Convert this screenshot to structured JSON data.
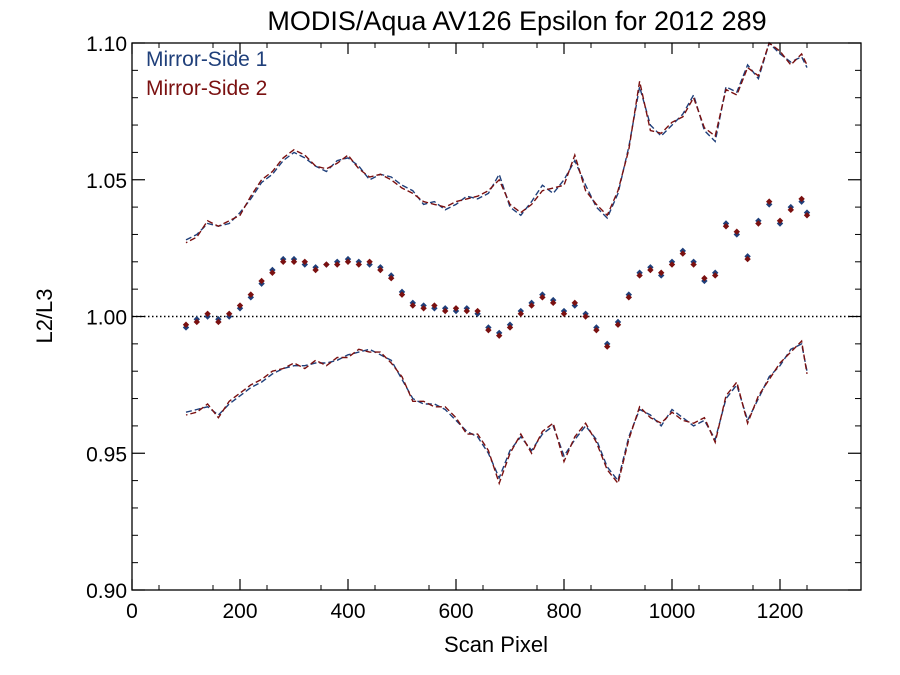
{
  "chart_data": {
    "type": "scatter",
    "title": "MODIS/Aqua AV126 Epsilon for 2012 289",
    "xlabel": "Scan Pixel",
    "ylabel": "L2/L3",
    "xlim": [
      0,
      1350
    ],
    "ylim": [
      0.9,
      1.1
    ],
    "x_ticks": [
      0,
      200,
      400,
      600,
      800,
      1000,
      1200
    ],
    "x_tick_labels": [
      "0",
      "200",
      "400",
      "600",
      "800",
      "1000",
      "1200"
    ],
    "y_ticks": [
      0.9,
      0.95,
      1.0,
      1.05,
      1.1
    ],
    "y_tick_labels": [
      "0.90",
      "0.95",
      "1.00",
      "1.05",
      "1.10"
    ],
    "reference_line": 1.0,
    "legend_position": "top-left",
    "colors": {
      "series1": "#1f3f7a",
      "series2": "#7a1010",
      "reference": "#000000"
    },
    "series": [
      {
        "name": "Mirror-Side 1",
        "x": [
          100,
          120,
          140,
          160,
          180,
          200,
          220,
          240,
          260,
          280,
          300,
          320,
          340,
          360,
          380,
          400,
          420,
          440,
          460,
          480,
          500,
          520,
          540,
          560,
          580,
          600,
          620,
          640,
          660,
          680,
          700,
          720,
          740,
          760,
          780,
          800,
          820,
          840,
          860,
          880,
          900,
          920,
          940,
          960,
          980,
          1000,
          1020,
          1040,
          1060,
          1080,
          1100,
          1120,
          1140,
          1160,
          1180,
          1200,
          1220,
          1240,
          1250
        ],
        "y": [
          0.996,
          0.999,
          1.0,
          0.999,
          1.0,
          1.003,
          1.007,
          1.012,
          1.017,
          1.021,
          1.021,
          1.019,
          1.018,
          1.019,
          1.02,
          1.021,
          1.02,
          1.019,
          1.018,
          1.015,
          1.009,
          1.005,
          1.004,
          1.003,
          1.003,
          1.002,
          1.003,
          1.001,
          0.996,
          0.994,
          0.997,
          1.002,
          1.005,
          1.008,
          1.006,
          1.002,
          1.004,
          1.001,
          0.996,
          0.99,
          0.998,
          1.008,
          1.016,
          1.018,
          1.015,
          1.02,
          1.024,
          1.02,
          1.013,
          1.016,
          1.034,
          1.03,
          1.022,
          1.035,
          1.041,
          1.034,
          1.04,
          1.042,
          1.038
        ],
        "upper": [
          1.028,
          1.03,
          1.034,
          1.033,
          1.034,
          1.038,
          1.043,
          1.049,
          1.052,
          1.057,
          1.06,
          1.058,
          1.055,
          1.053,
          1.057,
          1.058,
          1.055,
          1.05,
          1.052,
          1.051,
          1.048,
          1.046,
          1.041,
          1.042,
          1.039,
          1.041,
          1.044,
          1.043,
          1.045,
          1.052,
          1.04,
          1.037,
          1.042,
          1.048,
          1.045,
          1.05,
          1.057,
          1.048,
          1.04,
          1.036,
          1.045,
          1.062,
          1.084,
          1.07,
          1.066,
          1.07,
          1.074,
          1.081,
          1.068,
          1.064,
          1.084,
          1.082,
          1.092,
          1.087,
          1.102,
          1.096,
          1.093,
          1.095,
          1.091
        ],
        "lower": [
          0.965,
          0.966,
          0.967,
          0.964,
          0.968,
          0.971,
          0.974,
          0.976,
          0.979,
          0.981,
          0.982,
          0.982,
          0.983,
          0.983,
          0.984,
          0.986,
          0.987,
          0.988,
          0.986,
          0.984,
          0.977,
          0.97,
          0.968,
          0.968,
          0.966,
          0.962,
          0.958,
          0.956,
          0.95,
          0.941,
          0.951,
          0.956,
          0.951,
          0.957,
          0.96,
          0.949,
          0.955,
          0.96,
          0.955,
          0.945,
          0.94,
          0.956,
          0.966,
          0.964,
          0.96,
          0.966,
          0.963,
          0.96,
          0.962,
          0.955,
          0.97,
          0.975,
          0.962,
          0.97,
          0.978,
          0.982,
          0.988,
          0.99,
          0.98
        ]
      },
      {
        "name": "Mirror-Side 2",
        "x": [
          100,
          120,
          140,
          160,
          180,
          200,
          220,
          240,
          260,
          280,
          300,
          320,
          340,
          360,
          380,
          400,
          420,
          440,
          460,
          480,
          500,
          520,
          540,
          560,
          580,
          600,
          620,
          640,
          660,
          680,
          700,
          720,
          740,
          760,
          780,
          800,
          820,
          840,
          860,
          880,
          900,
          920,
          940,
          960,
          980,
          1000,
          1020,
          1040,
          1060,
          1080,
          1100,
          1120,
          1140,
          1160,
          1180,
          1200,
          1220,
          1240,
          1250
        ],
        "y": [
          0.997,
          0.998,
          1.001,
          0.998,
          1.001,
          1.004,
          1.008,
          1.013,
          1.016,
          1.02,
          1.02,
          1.02,
          1.017,
          1.019,
          1.019,
          1.02,
          1.019,
          1.02,
          1.017,
          1.014,
          1.008,
          1.004,
          1.003,
          1.004,
          1.002,
          1.003,
          1.002,
          1.002,
          0.995,
          0.993,
          0.996,
          1.001,
          1.004,
          1.007,
          1.005,
          1.001,
          1.005,
          1.0,
          0.995,
          0.989,
          0.997,
          1.007,
          1.015,
          1.017,
          1.016,
          1.019,
          1.023,
          1.019,
          1.014,
          1.015,
          1.033,
          1.031,
          1.021,
          1.034,
          1.042,
          1.035,
          1.039,
          1.043,
          1.037
        ],
        "upper": [
          1.027,
          1.029,
          1.035,
          1.033,
          1.035,
          1.037,
          1.044,
          1.05,
          1.053,
          1.058,
          1.061,
          1.059,
          1.055,
          1.054,
          1.056,
          1.059,
          1.054,
          1.051,
          1.052,
          1.05,
          1.047,
          1.045,
          1.042,
          1.041,
          1.04,
          1.042,
          1.043,
          1.044,
          1.046,
          1.05,
          1.041,
          1.038,
          1.041,
          1.046,
          1.047,
          1.048,
          1.059,
          1.046,
          1.041,
          1.037,
          1.046,
          1.061,
          1.086,
          1.068,
          1.067,
          1.071,
          1.073,
          1.08,
          1.069,
          1.066,
          1.083,
          1.081,
          1.091,
          1.088,
          1.1,
          1.097,
          1.092,
          1.096,
          1.092
        ],
        "lower": [
          0.964,
          0.965,
          0.968,
          0.963,
          0.969,
          0.972,
          0.975,
          0.977,
          0.98,
          0.981,
          0.983,
          0.981,
          0.984,
          0.982,
          0.985,
          0.985,
          0.988,
          0.987,
          0.987,
          0.983,
          0.978,
          0.969,
          0.969,
          0.967,
          0.967,
          0.963,
          0.957,
          0.957,
          0.951,
          0.939,
          0.95,
          0.957,
          0.95,
          0.958,
          0.961,
          0.947,
          0.956,
          0.961,
          0.954,
          0.944,
          0.939,
          0.955,
          0.967,
          0.963,
          0.961,
          0.965,
          0.962,
          0.961,
          0.963,
          0.954,
          0.971,
          0.976,
          0.961,
          0.971,
          0.977,
          0.983,
          0.987,
          0.991,
          0.979
        ]
      }
    ]
  }
}
